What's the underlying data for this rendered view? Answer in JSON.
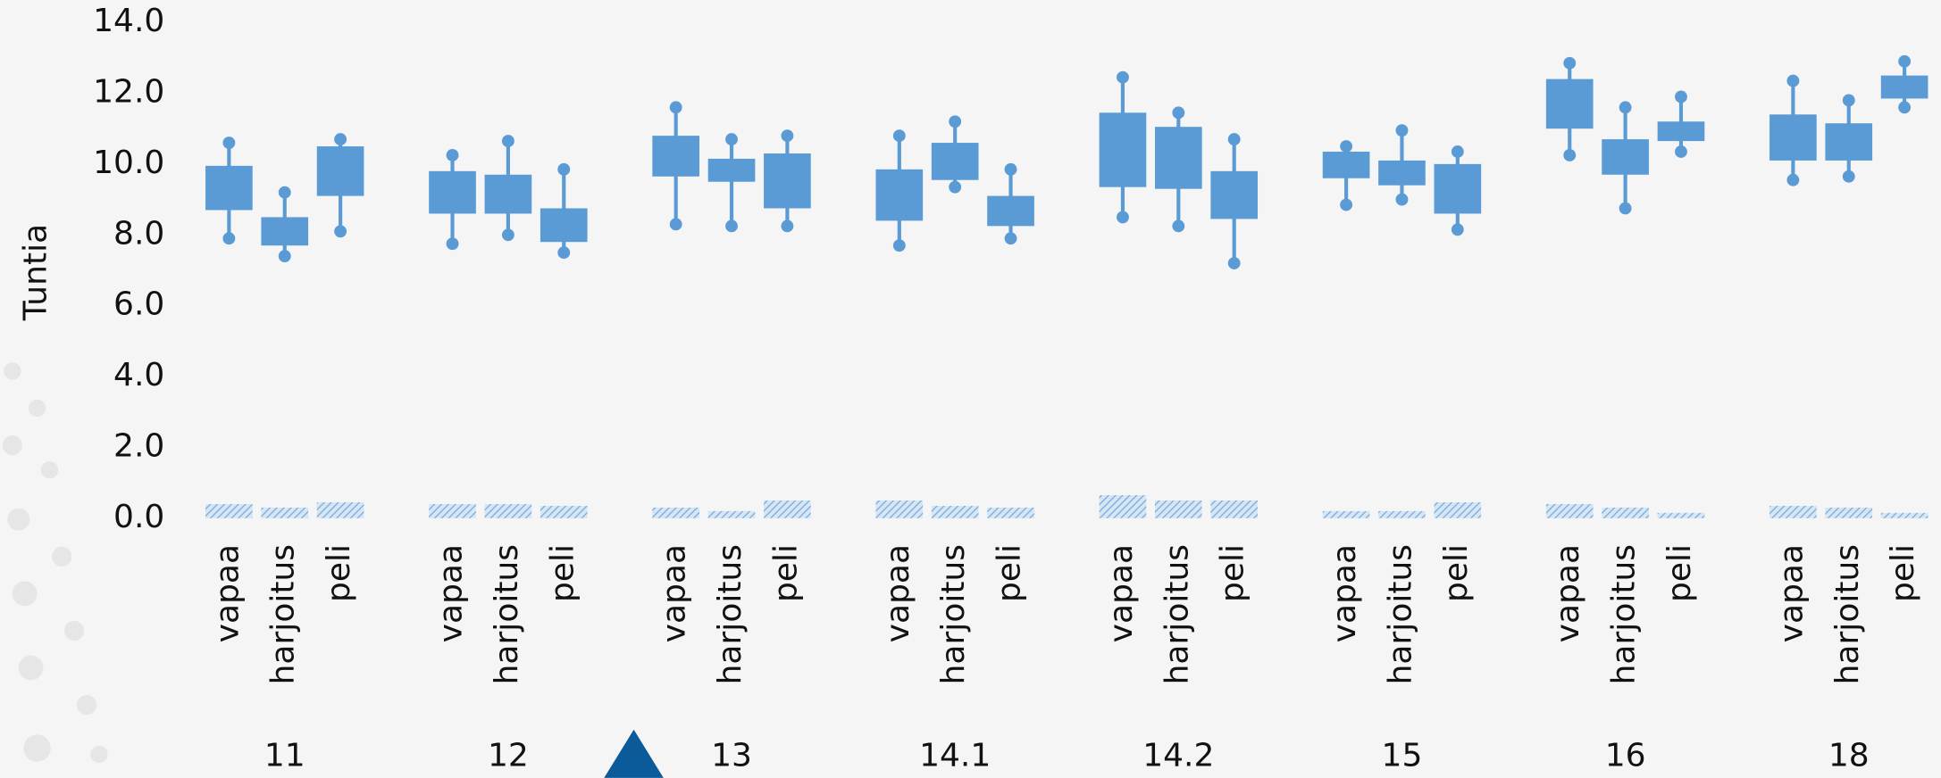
{
  "chart_data": {
    "type": "box",
    "y_label": "Tuntia",
    "ylim": [
      0,
      14
    ],
    "yticks": [
      {
        "value": 0,
        "label": "0.0"
      },
      {
        "value": 2,
        "label": "2.0"
      },
      {
        "value": 4,
        "label": "4.0"
      },
      {
        "value": 6,
        "label": "6.0"
      },
      {
        "value": 8,
        "label": "8.0"
      },
      {
        "value": 10,
        "label": "10.0"
      },
      {
        "value": 12,
        "label": "12.0"
      },
      {
        "value": 14,
        "label": "14.0"
      }
    ],
    "color": "#5b9bd5",
    "groups": [
      {
        "name": "11",
        "boxes": [
          {
            "label": "vapaa",
            "low": 7.9,
            "q1": 8.7,
            "q3": 9.95,
            "high": 10.6,
            "bar": 0.4
          },
          {
            "label": "harjoitus",
            "low": 7.4,
            "q1": 7.7,
            "q3": 8.5,
            "high": 9.2,
            "bar": 0.3
          },
          {
            "label": "peli",
            "low": 8.1,
            "q1": 9.1,
            "q3": 10.5,
            "high": 10.7,
            "bar": 0.45
          }
        ]
      },
      {
        "name": "12",
        "boxes": [
          {
            "label": "vapaa",
            "low": 7.75,
            "q1": 8.6,
            "q3": 9.8,
            "high": 10.25,
            "bar": 0.4
          },
          {
            "label": "harjoitus",
            "low": 8.0,
            "q1": 8.6,
            "q3": 9.7,
            "high": 10.65,
            "bar": 0.4
          },
          {
            "label": "peli",
            "low": 7.5,
            "q1": 7.8,
            "q3": 8.75,
            "high": 9.85,
            "bar": 0.35
          }
        ]
      },
      {
        "name": "13",
        "boxes": [
          {
            "label": "vapaa",
            "low": 8.3,
            "q1": 9.65,
            "q3": 10.8,
            "high": 11.6,
            "bar": 0.3
          },
          {
            "label": "harjoitus",
            "low": 8.25,
            "q1": 9.5,
            "q3": 10.15,
            "high": 10.7,
            "bar": 0.2
          },
          {
            "label": "peli",
            "low": 8.25,
            "q1": 8.75,
            "q3": 10.3,
            "high": 10.8,
            "bar": 0.5
          }
        ]
      },
      {
        "name": "14.1",
        "boxes": [
          {
            "label": "vapaa",
            "low": 7.7,
            "q1": 8.4,
            "q3": 9.85,
            "high": 10.8,
            "bar": 0.5
          },
          {
            "label": "harjoitus",
            "low": 9.35,
            "q1": 9.55,
            "q3": 10.6,
            "high": 11.2,
            "bar": 0.35
          },
          {
            "label": "peli",
            "low": 7.9,
            "q1": 8.25,
            "q3": 9.1,
            "high": 9.85,
            "bar": 0.3
          }
        ]
      },
      {
        "name": "14.2",
        "boxes": [
          {
            "label": "vapaa",
            "low": 8.5,
            "q1": 9.35,
            "q3": 11.45,
            "high": 12.45,
            "bar": 0.65
          },
          {
            "label": "harjoitus",
            "low": 8.25,
            "q1": 9.3,
            "q3": 11.05,
            "high": 11.45,
            "bar": 0.5
          },
          {
            "label": "peli",
            "low": 7.2,
            "q1": 8.45,
            "q3": 9.8,
            "high": 10.7,
            "bar": 0.5
          }
        ]
      },
      {
        "name": "15",
        "boxes": [
          {
            "label": "vapaa",
            "low": 8.85,
            "q1": 9.6,
            "q3": 10.35,
            "high": 10.5,
            "bar": 0.2
          },
          {
            "label": "harjoitus",
            "low": 9.0,
            "q1": 9.4,
            "q3": 10.1,
            "high": 10.95,
            "bar": 0.2
          },
          {
            "label": "peli",
            "low": 8.15,
            "q1": 8.6,
            "q3": 10.0,
            "high": 10.35,
            "bar": 0.45
          }
        ]
      },
      {
        "name": "16",
        "boxes": [
          {
            "label": "vapaa",
            "low": 10.25,
            "q1": 11.0,
            "q3": 12.4,
            "high": 12.85,
            "bar": 0.4
          },
          {
            "label": "harjoitus",
            "low": 8.75,
            "q1": 9.7,
            "q3": 10.7,
            "high": 11.6,
            "bar": 0.3
          },
          {
            "label": "peli",
            "low": 10.35,
            "q1": 10.65,
            "q3": 11.2,
            "high": 11.9,
            "bar": 0.15
          }
        ]
      },
      {
        "name": "18",
        "boxes": [
          {
            "label": "vapaa",
            "low": 9.55,
            "q1": 10.1,
            "q3": 11.4,
            "high": 12.35,
            "bar": 0.35
          },
          {
            "label": "harjoitus",
            "low": 9.65,
            "q1": 10.1,
            "q3": 11.15,
            "high": 11.8,
            "bar": 0.3
          },
          {
            "label": "peli",
            "low": 11.6,
            "q1": 11.85,
            "q3": 12.5,
            "high": 12.9,
            "bar": 0.15
          }
        ]
      }
    ]
  }
}
